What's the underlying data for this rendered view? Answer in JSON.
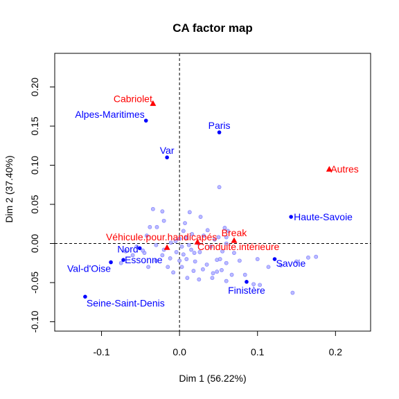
{
  "chart_data": {
    "type": "scatter",
    "title": "CA factor map",
    "xlabel": "Dim 1 (56.22%)",
    "ylabel": "Dim 2 (37.40%)",
    "xlim": [
      -0.16,
      0.245
    ],
    "ylim": [
      -0.112,
      0.243
    ],
    "x_ticks": [
      -0.1,
      0.0,
      0.1,
      0.2
    ],
    "x_tick_labels": [
      "-0.1",
      "0.0",
      "0.1",
      "0.2"
    ],
    "y_ticks": [
      -0.1,
      -0.05,
      0.0,
      0.05,
      0.1,
      0.15,
      0.2
    ],
    "y_tick_labels": [
      "-0.10",
      "-0.05",
      "0.00",
      "0.05",
      "0.10",
      "0.15",
      "0.20"
    ],
    "grid": false,
    "reference_lines": {
      "x": 0,
      "y": 0,
      "style": "dashed"
    },
    "colors": {
      "rows": "#0000ff",
      "cols": "#ff0000",
      "background": "#aaaaff"
    },
    "labeled_rows": [
      {
        "name": "Alpes-Maritimes",
        "x": -0.043,
        "y": 0.157,
        "anchor": "end",
        "dx": -2,
        "dy": -9
      },
      {
        "name": "Paris",
        "x": 0.051,
        "y": 0.142,
        "anchor": "middle",
        "dx": 0,
        "dy": -10
      },
      {
        "name": "Var",
        "x": -0.016,
        "y": 0.11,
        "anchor": "middle",
        "dx": 0,
        "dy": -10
      },
      {
        "name": "Haute-Savoie",
        "x": 0.143,
        "y": 0.034,
        "anchor": "start",
        "dx": 4,
        "dy": 0
      },
      {
        "name": "Nord",
        "x": -0.051,
        "y": -0.006,
        "anchor": "end",
        "dx": -2,
        "dy": 1
      },
      {
        "name": "Essonne",
        "x": -0.072,
        "y": -0.021,
        "anchor": "start",
        "dx": 2,
        "dy": 0
      },
      {
        "name": "Val-d'Oise",
        "x": -0.088,
        "y": -0.024,
        "anchor": "end",
        "dx": 0,
        "dy": 9
      },
      {
        "name": "Savoie",
        "x": 0.122,
        "y": -0.02,
        "anchor": "start",
        "dx": 2,
        "dy": 6
      },
      {
        "name": "Finistère",
        "x": 0.086,
        "y": -0.049,
        "anchor": "middle",
        "dx": 0,
        "dy": 12
      },
      {
        "name": "Seine-Saint-Denis",
        "x": -0.121,
        "y": -0.068,
        "anchor": "start",
        "dx": 2,
        "dy": 9
      }
    ],
    "column_points": [
      {
        "name": "Cabriolet",
        "x": -0.034,
        "y": 0.179,
        "anchor": "end",
        "dx": -1,
        "dy": -7
      },
      {
        "name": "Autres",
        "x": 0.192,
        "y": 0.095,
        "anchor": "start",
        "dx": 2,
        "dy": 0
      },
      {
        "name": "Véhicule.pour.handicapés",
        "x": -0.016,
        "y": -0.005,
        "anchor": "middle",
        "dx": -8,
        "dy": -15
      },
      {
        "name": "Break",
        "x": 0.07,
        "y": 0.004,
        "anchor": "middle",
        "dx": 0,
        "dy": -11
      },
      {
        "name": "Conduite.intérieure",
        "x": 0.023,
        "y": 0.002,
        "anchor": "start",
        "dx": 0,
        "dy": 7
      }
    ],
    "background_rows": [
      [
        -0.034,
        0.044
      ],
      [
        -0.022,
        0.041
      ],
      [
        0.013,
        0.04
      ],
      [
        0.027,
        0.034
      ],
      [
        -0.02,
        0.029
      ],
      [
        0.007,
        0.026
      ],
      [
        0.051,
        0.072
      ],
      [
        -0.038,
        0.021
      ],
      [
        -0.029,
        0.021
      ],
      [
        0.062,
        0.016
      ],
      [
        -0.042,
        0.01
      ],
      [
        0.005,
        0.016
      ],
      [
        0.016,
        0.012
      ],
      [
        -0.005,
        0.003
      ],
      [
        0.0,
        0.006
      ],
      [
        -0.011,
        0.001
      ],
      [
        0.008,
        0.007
      ],
      [
        0.031,
        0.01
      ],
      [
        0.045,
        0.005
      ],
      [
        0.06,
        0.008
      ],
      [
        0.05,
        0.008
      ],
      [
        -0.03,
        -0.002
      ],
      [
        0.003,
        -0.004
      ],
      [
        0.015,
        -0.008
      ],
      [
        0.026,
        -0.011
      ],
      [
        0.04,
        -0.004
      ],
      [
        0.055,
        -0.01
      ],
      [
        0.07,
        -0.012
      ],
      [
        0.005,
        -0.014
      ],
      [
        -0.022,
        -0.015
      ],
      [
        -0.03,
        -0.022
      ],
      [
        -0.012,
        -0.019
      ],
      [
        0.009,
        -0.02
      ],
      [
        0.02,
        -0.023
      ],
      [
        0.035,
        -0.027
      ],
      [
        0.048,
        -0.021
      ],
      [
        0.06,
        -0.025
      ],
      [
        0.077,
        -0.022
      ],
      [
        0.1,
        -0.02
      ],
      [
        0.114,
        -0.03
      ],
      [
        0.13,
        -0.028
      ],
      [
        0.15,
        -0.023
      ],
      [
        0.165,
        -0.018
      ],
      [
        0.175,
        -0.017
      ],
      [
        -0.06,
        -0.015
      ],
      [
        -0.075,
        -0.025
      ],
      [
        -0.069,
        -0.01
      ],
      [
        -0.045,
        -0.012
      ],
      [
        -0.04,
        -0.03
      ],
      [
        -0.015,
        -0.03
      ],
      [
        0.003,
        -0.03
      ],
      [
        0.018,
        -0.035
      ],
      [
        0.03,
        -0.033
      ],
      [
        0.043,
        -0.038
      ],
      [
        0.054,
        -0.034
      ],
      [
        0.067,
        -0.04
      ],
      [
        0.084,
        -0.04
      ],
      [
        0.095,
        -0.052
      ],
      [
        0.103,
        -0.053
      ],
      [
        0.145,
        -0.063
      ],
      [
        -0.008,
        -0.037
      ],
      [
        0.01,
        -0.044
      ],
      [
        0.025,
        -0.046
      ],
      [
        0.042,
        -0.044
      ],
      [
        0.06,
        -0.048
      ],
      [
        -0.02,
        -0.008
      ],
      [
        0.036,
        0.017
      ],
      [
        0.06,
        0.0
      ],
      [
        0.0,
        -0.022
      ],
      [
        -0.004,
        -0.011
      ],
      [
        0.048,
        -0.036
      ],
      [
        0.052,
        -0.02
      ],
      [
        0.019,
        -0.012
      ],
      [
        -0.055,
        -0.004
      ],
      [
        -0.047,
        -0.009
      ],
      [
        0.058,
        0.02
      ],
      [
        0.024,
        0.0
      ],
      [
        0.012,
        -0.002
      ]
    ]
  }
}
